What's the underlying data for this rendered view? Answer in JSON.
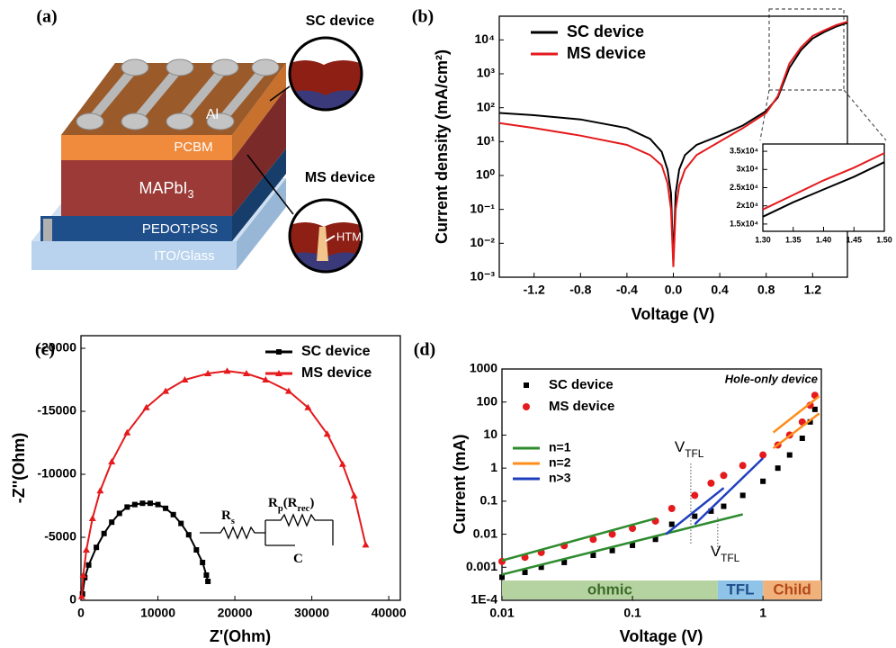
{
  "diagram": {
    "panel_label": "(a)",
    "top_electrode": "Al",
    "layers": [
      [
        "PCBM"
      ],
      [
        "MAPbI",
        "3"
      ],
      [
        "PEDOT:PSS"
      ],
      [
        "ITO/Glass"
      ]
    ],
    "insets": [
      "SC device",
      "MS device"
    ],
    "htm": "HTM"
  },
  "chart_data": [
    {
      "type": "line",
      "panel_label": "(b)",
      "x_label": "Voltage (V)",
      "y_label": "Current density (mA/cm²)",
      "yscale": "log",
      "legend": "upper left",
      "x": [
        -1.5,
        -1.2,
        -0.8,
        -0.4,
        -0.2,
        -0.1,
        -0.05,
        -0.02,
        0,
        0.02,
        0.05,
        0.1,
        0.2,
        0.4,
        0.6,
        0.8,
        0.9,
        1.0,
        1.1,
        1.2,
        1.3,
        1.4,
        1.5
      ],
      "series": [
        {
          "name": "SC device",
          "color": "#000000",
          "mode": "lines",
          "values": [
            70,
            60,
            45,
            25,
            12,
            5,
            1.5,
            0.3,
            0.003,
            0.3,
            1.5,
            4,
            8,
            15,
            30,
            80,
            200,
            1500,
            5000,
            11000,
            17000,
            24500,
            32000
          ]
        },
        {
          "name": "MS device",
          "color": "#e41a1c",
          "mode": "lines",
          "values": [
            35,
            25,
            15,
            8,
            4,
            2,
            0.6,
            0.1,
            0.002,
            0.1,
            0.5,
            1.5,
            4,
            10,
            25,
            70,
            220,
            2000,
            6000,
            13000,
            19000,
            27000,
            34500
          ]
        }
      ],
      "xlim": [
        -1.5,
        1.5
      ],
      "xticks": [
        -1.2,
        -0.8,
        -0.4,
        {
          "value": 0,
          "label": "0.0"
        },
        0.4,
        0.8,
        1.2
      ],
      "ylim": [
        0.001,
        50000
      ],
      "yticks": [
        {
          "value": 0.001,
          "label": "10⁻³"
        },
        {
          "value": 0.01,
          "label": "10⁻²"
        },
        {
          "value": 0.1,
          "label": "10⁻¹"
        },
        {
          "value": 1,
          "label": "10⁰"
        },
        {
          "value": 10,
          "label": "10¹"
        },
        {
          "value": 100,
          "label": "10²"
        },
        {
          "value": 1000,
          "label": "10³"
        },
        {
          "value": 10000,
          "label": "10⁴"
        }
      ]
    },
    {
      "type": "line",
      "x": [
        1.3,
        1.35,
        1.4,
        1.45,
        1.5
      ],
      "series": [
        {
          "color": "#000000",
          "mode": "lines",
          "values": [
            17000,
            21000,
            24500,
            28000,
            32000
          ]
        },
        {
          "color": "#e41a1c",
          "mode": "lines",
          "values": [
            19000,
            23000,
            27000,
            30500,
            34500
          ]
        }
      ],
      "xlim": [
        1.3,
        1.5
      ],
      "xticks": [
        {
          "value": 1.3,
          "label": "1.30"
        },
        1.35,
        {
          "value": 1.4,
          "label": "1.40"
        },
        1.45,
        {
          "value": 1.5,
          "label": "1.50"
        }
      ],
      "ylim": [
        13000,
        37000
      ],
      "yticks": [
        {
          "value": 15000,
          "label": "1.5x10⁴"
        },
        {
          "value": 20000,
          "label": "2x10⁴"
        },
        {
          "value": 25000,
          "label": "2.5x10⁴"
        },
        {
          "value": 30000,
          "label": "3x10⁴"
        },
        {
          "value": 35000,
          "label": "3.5x10⁴"
        }
      ]
    },
    {
      "type": "line",
      "panel_label": "(c)",
      "x_label": "Z'(Ohm)",
      "y_label": "-Z''(Ohm)",
      "legend": "upper right",
      "series": [
        {
          "name": "SC device",
          "color": "#000000",
          "mode": "lines+markers",
          "marker": "square",
          "x": [
            200,
            500,
            1000,
            2000,
            3000,
            4000,
            5000,
            6000,
            7000,
            8000,
            9000,
            10000,
            11000,
            12000,
            13000,
            14000,
            15000,
            15800,
            16300,
            16500
          ],
          "values": [
            -500,
            -1800,
            -2800,
            -4200,
            -5300,
            -6200,
            -6900,
            -7400,
            -7600,
            -7700,
            -7700,
            -7600,
            -7300,
            -6800,
            -6100,
            -5200,
            -4000,
            -3000,
            -2000,
            -1500
          ]
        },
        {
          "name": "MS device",
          "color": "#e41a1c",
          "mode": "lines+markers",
          "marker": "triangle",
          "x": [
            100,
            300,
            700,
            1500,
            2500,
            4000,
            6000,
            8500,
            11000,
            13500,
            16500,
            19000,
            21500,
            24000,
            27000,
            29500,
            32000,
            34000,
            35500,
            37000
          ],
          "values": [
            -300,
            -2000,
            -4000,
            -6500,
            -8700,
            -11000,
            -13300,
            -15300,
            -16600,
            -17500,
            -18000,
            -18200,
            -18000,
            -17500,
            -16600,
            -15300,
            -13200,
            -10800,
            -8300,
            -4400
          ]
        }
      ],
      "xlim": [
        0,
        41500
      ],
      "xticks": [
        0,
        10000,
        20000,
        30000,
        40000
      ],
      "ylim": [
        0,
        -21000
      ],
      "yticks": [
        0,
        -5000,
        -10000,
        -15000,
        -20000
      ],
      "circuit": [
        [
          "R",
          "s"
        ],
        [
          "R",
          "p",
          "(R",
          "rec",
          ")"
        ],
        [
          "C"
        ]
      ]
    },
    {
      "type": "line",
      "panel_label": "(d)",
      "x_label": "Voltage (V)",
      "y_label": "Current (mA)",
      "legend": "upper left",
      "xscale": "log",
      "yscale": "log",
      "annotation": "Hole-only device",
      "series": [
        {
          "name": "SC device",
          "color": "#000000",
          "mode": "markers",
          "marker": "square",
          "x": [
            0.01,
            0.015,
            0.02,
            0.03,
            0.05,
            0.07,
            0.1,
            0.15,
            0.2,
            0.3,
            0.4,
            0.5,
            0.7,
            1,
            1.3,
            1.6,
            2,
            2.3,
            2.5
          ],
          "values": [
            0.0005,
            0.0007,
            0.001,
            0.0014,
            0.0023,
            0.0032,
            0.0046,
            0.007,
            0.02,
            0.035,
            0.05,
            0.07,
            0.15,
            0.4,
            1,
            2.5,
            8,
            25,
            60
          ]
        },
        {
          "name": "MS device",
          "color": "#e41a1c",
          "mode": "markers",
          "marker": "circle",
          "x": [
            0.01,
            0.015,
            0.02,
            0.03,
            0.05,
            0.07,
            0.1,
            0.15,
            0.2,
            0.3,
            0.4,
            0.5,
            0.7,
            1,
            1.3,
            1.6,
            2,
            2.3,
            2.5
          ],
          "values": [
            0.0015,
            0.002,
            0.0028,
            0.0045,
            0.007,
            0.01,
            0.015,
            0.025,
            0.06,
            0.15,
            0.35,
            0.6,
            1.2,
            2.5,
            5,
            10,
            25,
            80,
            160
          ]
        },
        {
          "name": "n=1",
          "color": "#2e8b2e",
          "mode": "lines",
          "x": [
            0.01,
            0.7,
            null,
            0.01,
            0.15
          ],
          "values": [
            0.0006,
            0.04,
            null,
            0.0016,
            0.03
          ]
        },
        {
          "name": "n=2",
          "color": "#ff8c1a",
          "mode": "lines",
          "x": [
            1.2,
            2.7,
            null,
            1.2,
            2.7
          ],
          "values": [
            4,
            45,
            null,
            12,
            150
          ]
        },
        {
          "name": "n>3",
          "color": "#1f3fbf",
          "mode": "lines",
          "x": [
            0.3,
            1,
            null,
            0.18,
            0.5
          ],
          "values": [
            0.02,
            2,
            null,
            0.01,
            0.25
          ]
        }
      ],
      "regions": [
        {
          "label": "ohmic",
          "from": 0.01,
          "to": 0.45,
          "color": "#b5d3a0",
          "label_color": "#3d6b2a"
        },
        {
          "label": "TFL",
          "from": 0.45,
          "to": 1,
          "color": "#8fc3e8",
          "label_color": "#1f4f8a"
        },
        {
          "label": "Child",
          "from": 1,
          "to": 2.8,
          "color": "#f0b27a",
          "label_color": "#b5481a"
        }
      ],
      "thresholds": [
        {
          "label": [
            "V",
            "TFL"
          ],
          "x": 0.28
        },
        {
          "label": [
            "V",
            "TFL"
          ],
          "x": 0.45
        }
      ],
      "xlim": [
        0.01,
        2.8
      ],
      "xticks": [
        0.01,
        0.1,
        1
      ],
      "ylim": [
        0.0001,
        1000
      ],
      "yticks": [
        {
          "value": 0.0001,
          "label": "1E-4"
        },
        0.001,
        0.01,
        0.1,
        1,
        10,
        100,
        1000
      ]
    }
  ]
}
